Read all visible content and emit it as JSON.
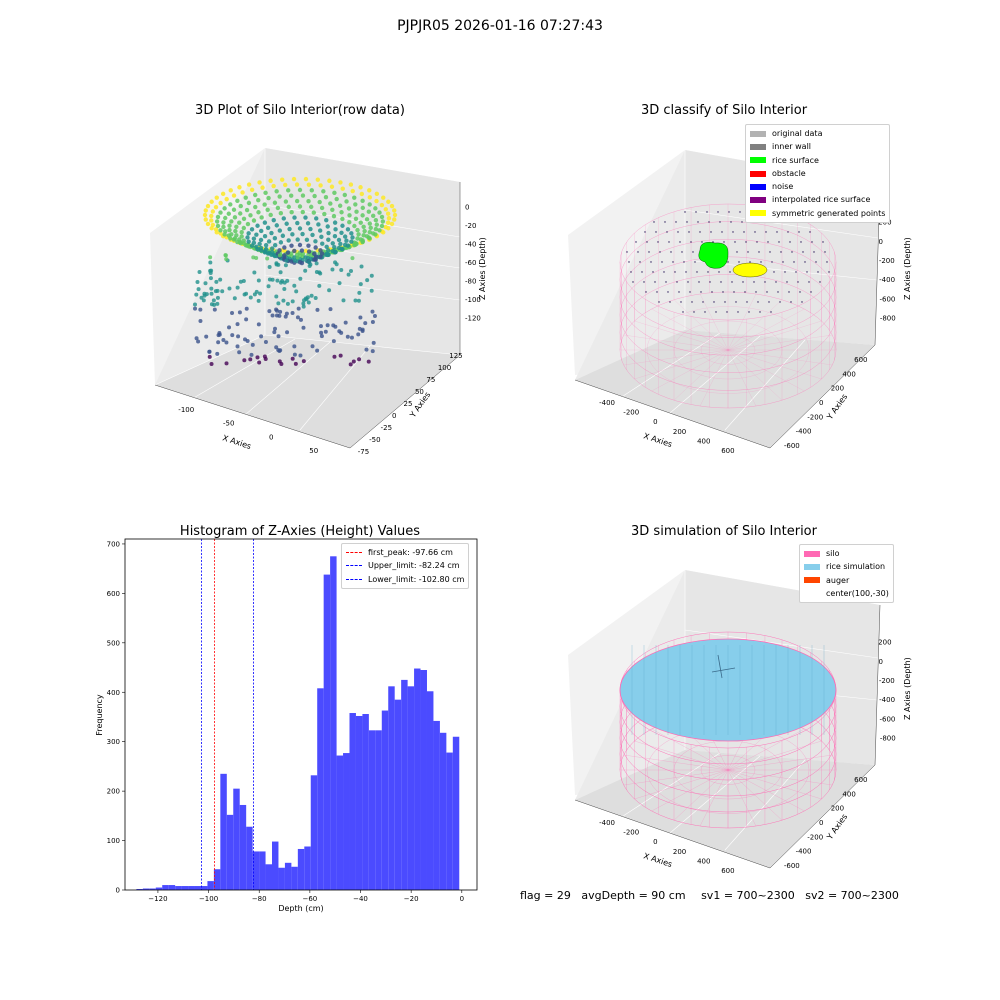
{
  "suptitle": "PJPJR05 2026-01-16 07:27:43",
  "panel1": {
    "title": "3D Plot of Silo Interior(row data)",
    "xlabel": "X Axies",
    "ylabel": "Y Axies",
    "zlabel": "Z Axies (Depth)",
    "xticks": [
      "-100",
      "-50",
      "0",
      "50"
    ],
    "yticks": [
      "-75",
      "-50",
      "-25",
      "0",
      "25",
      "50",
      "75",
      "100",
      "125"
    ],
    "zticks": [
      "0",
      "-20",
      "-40",
      "-60",
      "-80",
      "-100",
      "-120"
    ],
    "colormap": "viridis"
  },
  "panel2": {
    "title": "3D classify of Silo Interior",
    "xlabel": "X Axies",
    "ylabel": "Y Axies",
    "zlabel": "Z Axies (Depth)",
    "xticks": [
      "-400",
      "-200",
      "0",
      "200",
      "400",
      "600"
    ],
    "yticks": [
      "-600",
      "-400",
      "-200",
      "0",
      "200",
      "400",
      "600"
    ],
    "zticks": [
      "200",
      "0",
      "-200",
      "-400",
      "-600",
      "-800"
    ],
    "legend": [
      {
        "label": "original data",
        "color": "#b2b2b2"
      },
      {
        "label": "inner wall",
        "color": "#808080"
      },
      {
        "label": "rice surface",
        "color": "#00ff00"
      },
      {
        "label": "obstacle",
        "color": "#ff0000"
      },
      {
        "label": "noise",
        "color": "#0000ff"
      },
      {
        "label": "interpolated rice surface",
        "color": "#800080"
      },
      {
        "label": "symmetric generated points",
        "color": "#ffff00"
      }
    ]
  },
  "panel3": {
    "title": "Histogram of Z-Axies (Height) Values",
    "xlabel": "Depth (cm)",
    "ylabel": "Frequency",
    "legend": [
      {
        "label": "first_peak: -97.66 cm",
        "color": "#ff0000"
      },
      {
        "label": "Upper_limit: -82.24 cm",
        "color": "#0000ff"
      },
      {
        "label": "Lower_limit: -102.80 cm",
        "color": "#0000ff"
      }
    ]
  },
  "panel4": {
    "title": "3D simulation of Silo Interior",
    "xlabel": "X Axies",
    "ylabel": "Y Axies",
    "zlabel": "Z Axies (Depth)",
    "xticks": [
      "-400",
      "-200",
      "0",
      "200",
      "400",
      "600"
    ],
    "yticks": [
      "-600",
      "-400",
      "-200",
      "0",
      "200",
      "400",
      "600"
    ],
    "zticks": [
      "200",
      "0",
      "-200",
      "-400",
      "-600",
      "-800"
    ],
    "legend": [
      {
        "label": "silo",
        "color": "#ff69b4"
      },
      {
        "label": "rice simulation",
        "color": "#87ceeb"
      },
      {
        "label": "auger",
        "color": "#ff4500"
      },
      {
        "label": "center(100,-30)",
        "color": "none"
      }
    ]
  },
  "footer": {
    "flag": "flag = 29",
    "avg": "avgDepth = 90 cm",
    "sv1": "sv1 = 700~2300",
    "sv2": "sv2 = 700~2300"
  },
  "chart_data": [
    {
      "type": "bar",
      "title": "Histogram of Z-Axies (Height) Values",
      "xlabel": "Depth (cm)",
      "ylabel": "Frequency",
      "xlim": [
        -133,
        6
      ],
      "ylim": [
        0,
        710
      ],
      "xticks": [
        -120,
        -100,
        -80,
        -60,
        -40,
        -20,
        0
      ],
      "yticks": [
        0,
        100,
        200,
        300,
        400,
        500,
        600,
        700
      ],
      "bin_width": 2.55,
      "bin_start": -128.5,
      "values": [
        2,
        3,
        3,
        5,
        10,
        10,
        8,
        8,
        8,
        8,
        8,
        18,
        42,
        235,
        152,
        205,
        172,
        128,
        78,
        78,
        52,
        98,
        45,
        55,
        47,
        83,
        88,
        232,
        408,
        638,
        675,
        272,
        277,
        358,
        352,
        356,
        323,
        323,
        363,
        412,
        385,
        425,
        412,
        448,
        445,
        402,
        342,
        318,
        278,
        310
      ],
      "vlines": [
        {
          "label": "first_peak: -97.66 cm",
          "x": -97.66,
          "color": "#ff0000"
        },
        {
          "label": "Upper_limit: -82.24 cm",
          "x": -82.24,
          "color": "#0000ff"
        },
        {
          "label": "Lower_limit: -102.80 cm",
          "x": -102.8,
          "color": "#0000ff"
        }
      ],
      "bar_color": "#4b4bff",
      "legend_position": "top-right"
    }
  ]
}
